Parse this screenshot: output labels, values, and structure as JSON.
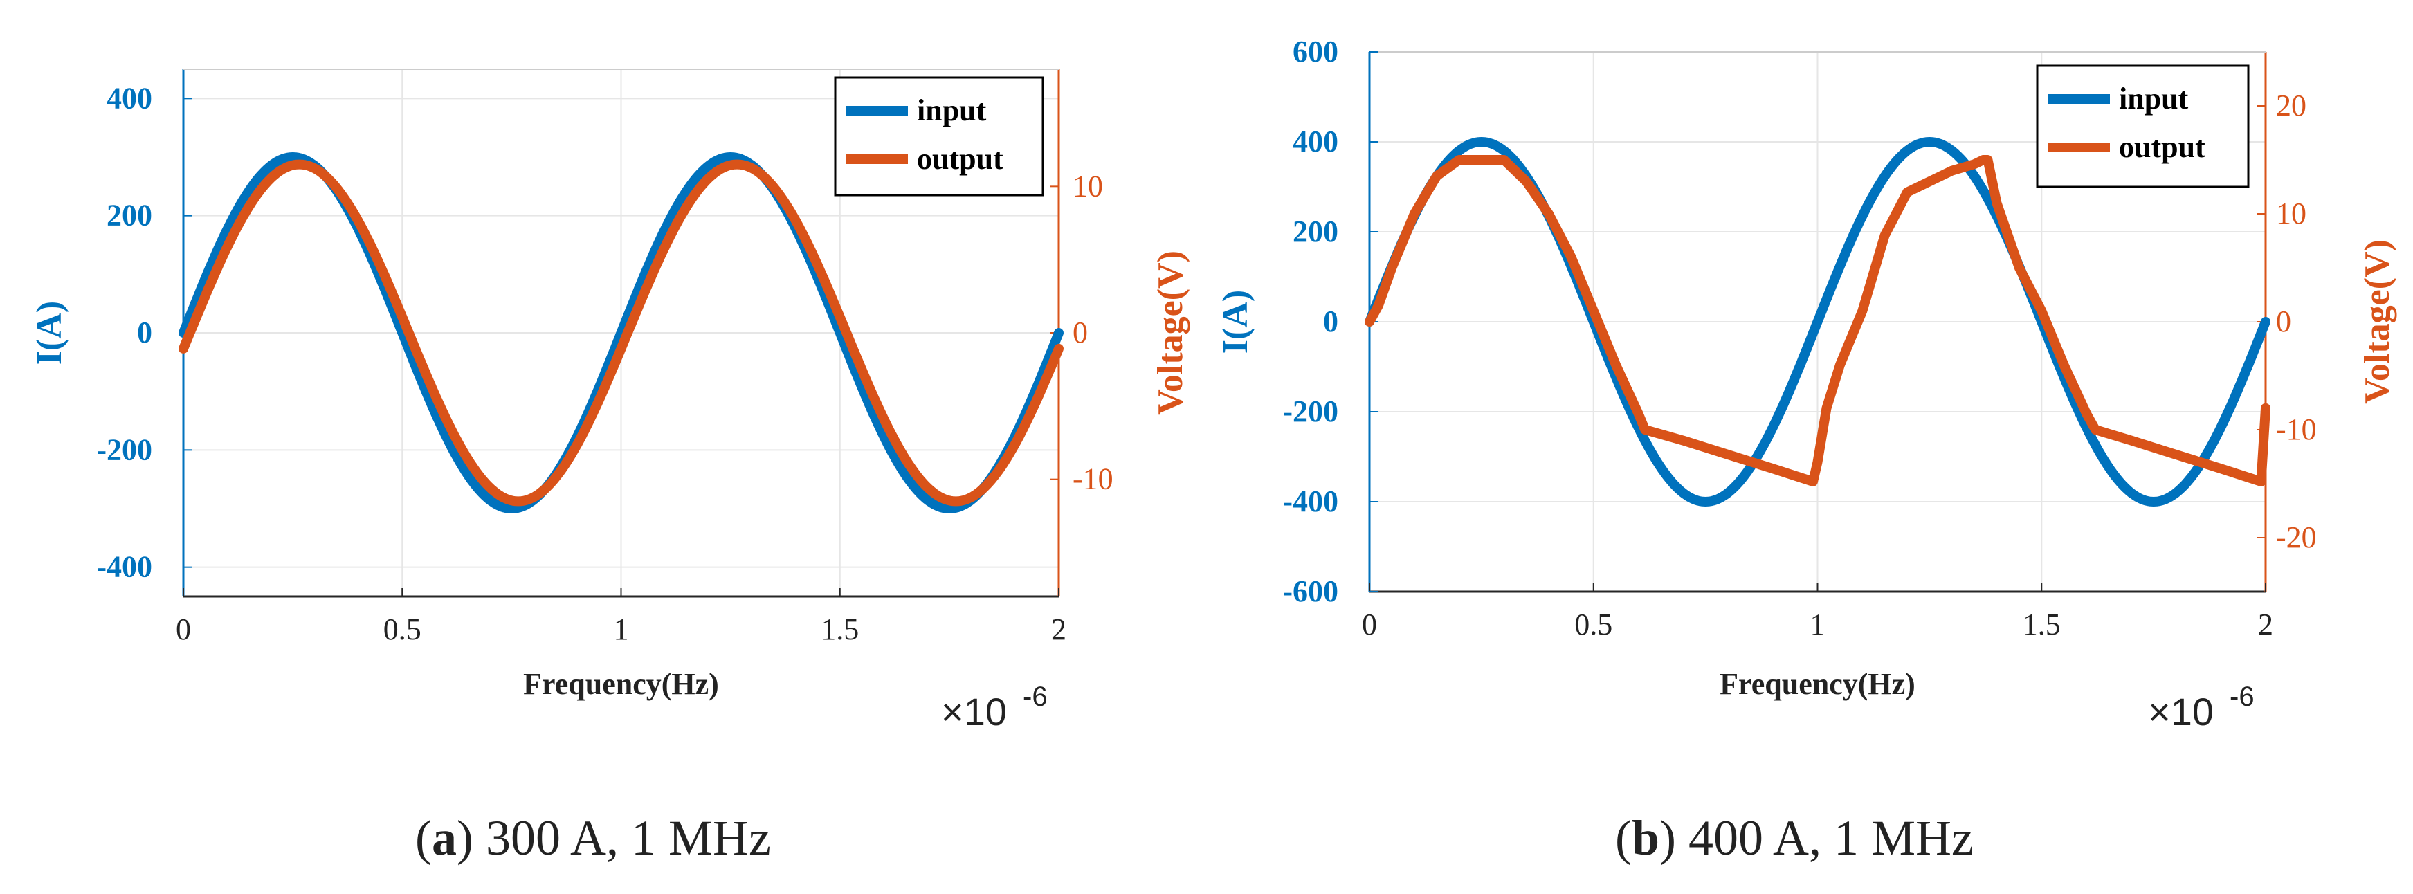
{
  "chart_data": [
    {
      "type": "line",
      "panel": "a",
      "caption_letter": "a",
      "caption_text": "300 A, 1 MHz",
      "xlabel": "Frequency(Hz)",
      "x_multiplier": "×10",
      "x_exponent": "-6",
      "ylabel_left": "I(A)",
      "ylabel_right": "Voltage(V)",
      "xlim": [
        0,
        2
      ],
      "ylim_left": [
        -450,
        450
      ],
      "ylim_right": [
        -18,
        18
      ],
      "xticks": [
        "0",
        "0.5",
        "1",
        "1.5",
        "2"
      ],
      "yticks_left": [
        "400",
        "200",
        "0",
        "-200",
        "-400"
      ],
      "yticks_right": [
        "10",
        "0",
        "-10"
      ],
      "legend": [
        "input",
        "output"
      ],
      "legend_position": "top-right",
      "grid": true,
      "series": [
        {
          "name": "input",
          "axis": "left",
          "color": "#0072BD",
          "shape": "sine",
          "amplitude": 300,
          "frequency_per_unit": 1,
          "phase_shift": 0
        },
        {
          "name": "output",
          "axis": "right",
          "color": "#D95319",
          "shape": "sine",
          "amplitude": 11.5,
          "frequency_per_unit": 1,
          "phase_shift": 0.015
        }
      ]
    },
    {
      "type": "line",
      "panel": "b",
      "caption_letter": "b",
      "caption_text": "400 A, 1 MHz",
      "xlabel": "Frequency(Hz)",
      "x_multiplier": "×10",
      "x_exponent": "-6",
      "ylabel_left": "I(A)",
      "ylabel_right": "Voltage(V)",
      "xlim": [
        0,
        2
      ],
      "ylim_left": [
        -600,
        600
      ],
      "ylim_right": [
        -25,
        25
      ],
      "xticks": [
        "0",
        "0.5",
        "1",
        "1.5",
        "2"
      ],
      "yticks_left": [
        "600",
        "400",
        "200",
        "0",
        "-200",
        "-400",
        "-600"
      ],
      "yticks_right": [
        "20",
        "10",
        "0",
        "-10",
        "-20"
      ],
      "legend": [
        "input",
        "output"
      ],
      "legend_position": "top-right",
      "grid": true,
      "series": [
        {
          "name": "input",
          "axis": "left",
          "color": "#0072BD",
          "shape": "sine",
          "amplitude": 400,
          "frequency_per_unit": 1,
          "phase_shift": 0
        },
        {
          "name": "output",
          "axis": "right",
          "color": "#D95319",
          "shape": "points",
          "x": [
            0,
            0.02,
            0.05,
            0.1,
            0.15,
            0.2,
            0.22,
            0.3,
            0.35,
            0.4,
            0.45,
            0.5,
            0.55,
            0.6,
            0.615,
            0.7,
            0.8,
            0.9,
            0.99,
            1.0,
            1.02,
            1.05,
            1.08,
            1.1,
            1.15,
            1.2,
            1.25,
            1.3,
            1.35,
            1.37,
            1.38,
            1.4,
            1.45,
            1.5,
            1.55,
            1.6,
            1.62,
            1.7,
            1.8,
            1.9,
            1.99,
            2.0
          ],
          "y": [
            0,
            1.5,
            5,
            10,
            13.5,
            15,
            15,
            15,
            13,
            10,
            6,
            1,
            -4,
            -8.5,
            -10,
            -11,
            -12.3,
            -13.6,
            -14.8,
            -13,
            -8,
            -4,
            -1,
            1,
            8,
            12,
            13,
            14,
            14.6,
            15,
            15,
            11,
            5,
            1,
            -4,
            -8.5,
            -10,
            -11,
            -12.3,
            -13.6,
            -14.8,
            -8
          ]
        }
      ]
    }
  ]
}
